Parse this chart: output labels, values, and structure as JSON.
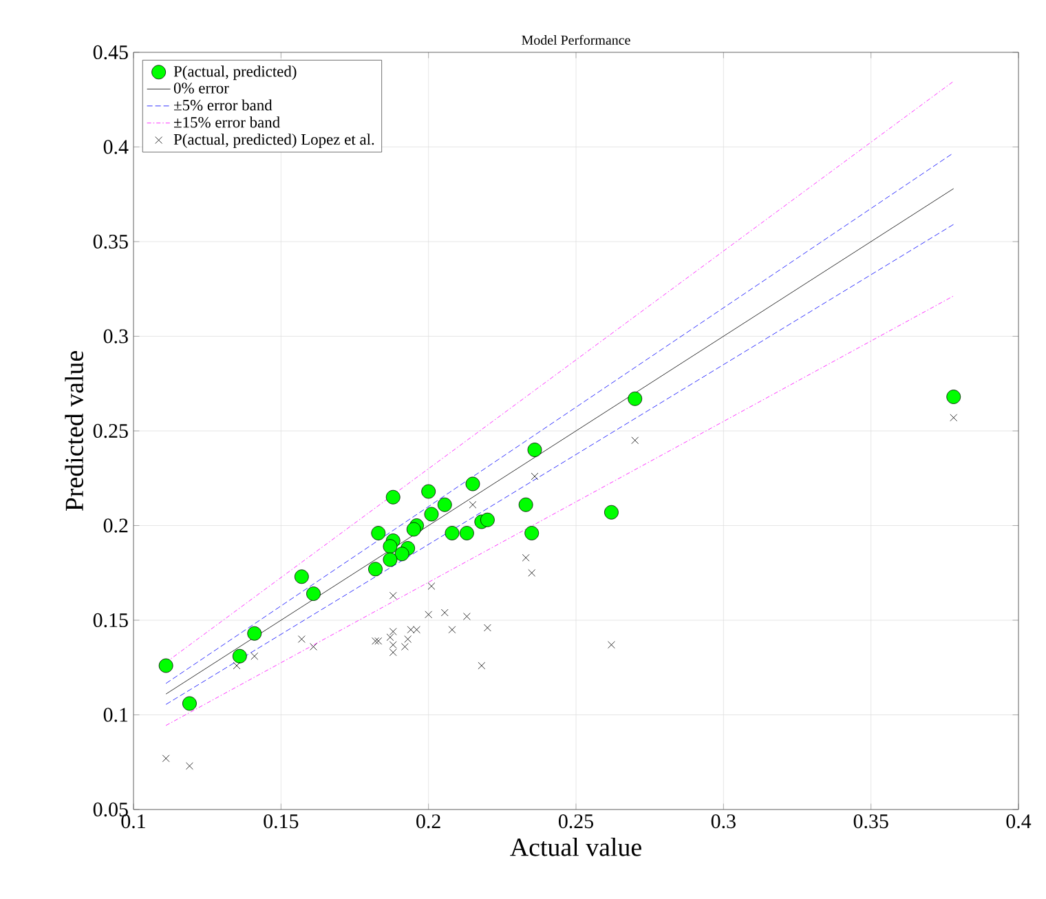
{
  "chart_data": {
    "type": "scatter",
    "title": "Model Performance",
    "xlabel": "Actual value",
    "ylabel": "Predicted value",
    "xlim": [
      0.1,
      0.4
    ],
    "ylim": [
      0.05,
      0.45
    ],
    "xticks": [
      0.1,
      0.15,
      0.2,
      0.25,
      0.3,
      0.35,
      0.4
    ],
    "yticks": [
      0.05,
      0.1,
      0.15,
      0.2,
      0.25,
      0.3,
      0.35,
      0.4,
      0.45
    ],
    "grid": true,
    "legend": "top left",
    "series": [
      {
        "name": "P(actual, predicted)",
        "marker": "circle",
        "color": "#00ff00",
        "x": [
          0.111,
          0.119,
          0.136,
          0.141,
          0.157,
          0.161,
          0.188,
          0.2,
          0.215,
          0.2055,
          0.201,
          0.196,
          0.195,
          0.183,
          0.188,
          0.187,
          0.193,
          0.191,
          0.187,
          0.182,
          0.208,
          0.213,
          0.218,
          0.22,
          0.233,
          0.235,
          0.236,
          0.262,
          0.27,
          0.378
        ],
        "values": [
          0.126,
          0.106,
          0.131,
          0.143,
          0.173,
          0.164,
          0.215,
          0.218,
          0.222,
          0.211,
          0.206,
          0.2,
          0.198,
          0.196,
          0.192,
          0.189,
          0.188,
          0.185,
          0.182,
          0.177,
          0.196,
          0.196,
          0.202,
          0.203,
          0.211,
          0.196,
          0.24,
          0.207,
          0.267,
          0.268
        ]
      },
      {
        "name": "0% error",
        "type": "line",
        "marker": "none",
        "line_style": "solid",
        "color": "#000000",
        "x": [
          0.111,
          0.378
        ],
        "values": [
          0.111,
          0.378
        ]
      },
      {
        "name": "±5% error band",
        "type": "line",
        "marker": "none",
        "line_style": "dashed",
        "color": "#0000ff",
        "x": [
          0.111,
          0.378
        ],
        "values": [
          0.1166,
          0.3969
        ]
      },
      {
        "type": "line",
        "marker": "none",
        "line_style": "dashed",
        "color": "#0000ff",
        "x": [
          0.111,
          0.378
        ],
        "values": [
          0.1055,
          0.3591
        ]
      },
      {
        "name": "±15% error band",
        "type": "line",
        "marker": "none",
        "line_style": "dashdot",
        "color": "#ff00ff",
        "x": [
          0.111,
          0.378
        ],
        "values": [
          0.1277,
          0.4347
        ]
      },
      {
        "type": "line",
        "marker": "none",
        "line_style": "dashdot",
        "color": "#ff00ff",
        "x": [
          0.111,
          0.378
        ],
        "values": [
          0.0944,
          0.3213
        ]
      },
      {
        "name": "P(actual, predicted) Lopez et al.",
        "marker": "cross",
        "color": "#000000",
        "x": [
          0.135,
          0.141,
          0.157,
          0.161,
          0.188,
          0.201,
          0.182,
          0.183,
          0.187,
          0.188,
          0.188,
          0.188,
          0.192,
          0.193,
          0.194,
          0.196,
          0.2,
          0.2055,
          0.208,
          0.213,
          0.215,
          0.218,
          0.22,
          0.233,
          0.235,
          0.236,
          0.262,
          0.27,
          0.378,
          0.111,
          0.119
        ],
        "values": [
          0.126,
          0.131,
          0.14,
          0.136,
          0.163,
          0.168,
          0.139,
          0.139,
          0.141,
          0.144,
          0.137,
          0.133,
          0.136,
          0.14,
          0.145,
          0.145,
          0.153,
          0.154,
          0.145,
          0.152,
          0.211,
          0.126,
          0.146,
          0.183,
          0.175,
          0.226,
          0.137,
          0.245,
          0.257,
          0.077,
          0.073
        ]
      }
    ]
  }
}
